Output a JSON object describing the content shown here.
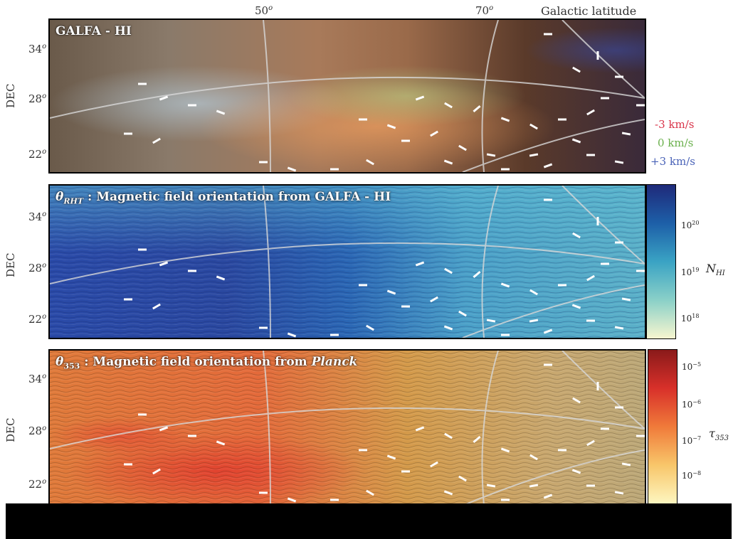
{
  "header": {
    "x_ticks": [
      {
        "label": "50",
        "sup": "o"
      },
      {
        "label": "70",
        "sup": "o"
      }
    ],
    "axis_title": "Galactic latitude"
  },
  "panels": [
    {
      "title": "GALFA - HI",
      "y_label": "DEC",
      "y_ticks": [
        "34",
        "28",
        "22"
      ],
      "y_sup": "o",
      "velocities": [
        "-3 km/s",
        "0 km/s",
        "+3 km/s"
      ],
      "velocity_colors": [
        "#d9344a",
        "#6ab04c",
        "#4a63b8"
      ]
    },
    {
      "title_symbol": "θ",
      "title_sub": "RHT",
      "title_text": " : Magnetic field orientation from GALFA - HI",
      "y_label": "DEC",
      "y_ticks": [
        "34",
        "28",
        "22"
      ],
      "y_sup": "o",
      "colorbar": {
        "label": "N",
        "label_sub": "HI",
        "ticks": [
          {
            "base": "10",
            "exp": "20"
          },
          {
            "base": "10",
            "exp": "19"
          },
          {
            "base": "10",
            "exp": "18"
          }
        ],
        "colors": [
          "#1f2a7a",
          "#1d5fa8",
          "#3aa3c4",
          "#8ad0c8",
          "#f7f6cf"
        ]
      }
    },
    {
      "title_symbol": "θ",
      "title_sub": "353",
      "title_text": " : Magnetic field orientation from ",
      "title_italic": "Planck",
      "y_label": "DEC",
      "y_ticks": [
        "34",
        "28",
        "22"
      ],
      "y_sup": "o",
      "colorbar": {
        "label": "τ",
        "label_sub": "353",
        "ticks": [
          {
            "base": "10",
            "exp": "−5"
          },
          {
            "base": "10",
            "exp": "−6"
          },
          {
            "base": "10",
            "exp": "−7"
          },
          {
            "base": "10",
            "exp": "−8"
          }
        ],
        "colors": [
          "#8a1a1a",
          "#d8302a",
          "#f07a3a",
          "#f8c66a",
          "#fdf6c0"
        ]
      }
    }
  ]
}
